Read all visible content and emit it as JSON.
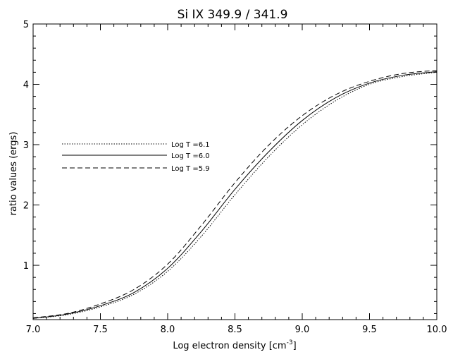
{
  "chart_data": {
    "type": "line",
    "title": "Si IX 349.9 / 341.9",
    "xlabel": "Log electron density [cm",
    "xlabel_sup": "-3",
    "xlabel_end": "]",
    "ylabel": "ratio values (ergs)",
    "xlim": [
      7.0,
      10.0
    ],
    "ylim": [
      0.1,
      5.0
    ],
    "x_ticks": [
      7.0,
      7.5,
      8.0,
      8.5,
      9.0,
      9.5,
      10.0
    ],
    "x_tick_labels": [
      "7.0",
      "7.5",
      "8.0",
      "8.5",
      "9.0",
      "9.5",
      "10.0"
    ],
    "y_ticks": [
      1,
      2,
      3,
      4,
      5
    ],
    "y_tick_labels": [
      "1",
      "2",
      "3",
      "4",
      "5"
    ],
    "grid": false,
    "legend_position": "left-middle",
    "series": [
      {
        "name": "Log T =6.1",
        "style": "dotted",
        "x": [
          7.0,
          7.25,
          7.5,
          7.75,
          8.0,
          8.25,
          8.5,
          8.75,
          9.0,
          9.25,
          9.5,
          9.75,
          10.0
        ],
        "y": [
          0.12,
          0.18,
          0.31,
          0.52,
          0.9,
          1.48,
          2.17,
          2.8,
          3.33,
          3.73,
          4.0,
          4.13,
          4.2
        ]
      },
      {
        "name": "Log T =6.0",
        "style": "solid",
        "x": [
          7.0,
          7.25,
          7.5,
          7.75,
          8.0,
          8.25,
          8.5,
          8.75,
          9.0,
          9.25,
          9.5,
          9.75,
          10.0
        ],
        "y": [
          0.12,
          0.19,
          0.33,
          0.55,
          0.95,
          1.56,
          2.26,
          2.88,
          3.4,
          3.78,
          4.02,
          4.15,
          4.21
        ]
      },
      {
        "name": "Log T =5.9",
        "style": "dashed",
        "x": [
          7.0,
          7.25,
          7.5,
          7.75,
          8.0,
          8.25,
          8.5,
          8.75,
          9.0,
          9.25,
          9.5,
          9.75,
          10.0
        ],
        "y": [
          0.13,
          0.2,
          0.36,
          0.6,
          1.02,
          1.66,
          2.37,
          2.99,
          3.48,
          3.83,
          4.05,
          4.18,
          4.23
        ]
      }
    ]
  }
}
